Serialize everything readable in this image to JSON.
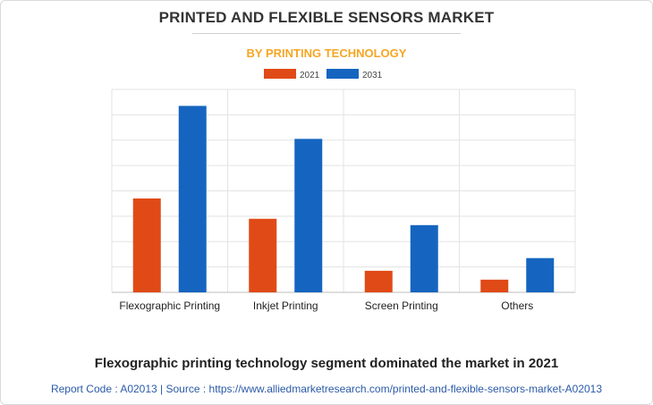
{
  "header": {
    "title": "PRINTED AND FLEXIBLE SENSORS MARKET",
    "subtitle": "BY PRINTING TECHNOLOGY"
  },
  "caption": "Flexographic printing technology segment dominated the market in 2021",
  "footer": {
    "text": "Report Code : A02013  |  Source : https://www.alliedmarketresearch.com/printed-and-flexible-sensors-market-A02013"
  },
  "colors": {
    "series_2021": "#e04a17",
    "series_2031": "#1565c0",
    "subtitle": "#f5a623",
    "grid": "#e3e3e3"
  },
  "chart_data": {
    "type": "bar",
    "categories": [
      "Flexographic Printing",
      "Inkjet Printing",
      "Screen Printing",
      "Others"
    ],
    "series": [
      {
        "name": "2021",
        "values": [
          3.7,
          2.9,
          0.85,
          0.5
        ]
      },
      {
        "name": "2031",
        "values": [
          7.35,
          6.05,
          2.65,
          1.35
        ]
      }
    ],
    "ylim": [
      0,
      8
    ],
    "grid": true,
    "legend": "top-center",
    "xlabel": "",
    "ylabel": ""
  }
}
